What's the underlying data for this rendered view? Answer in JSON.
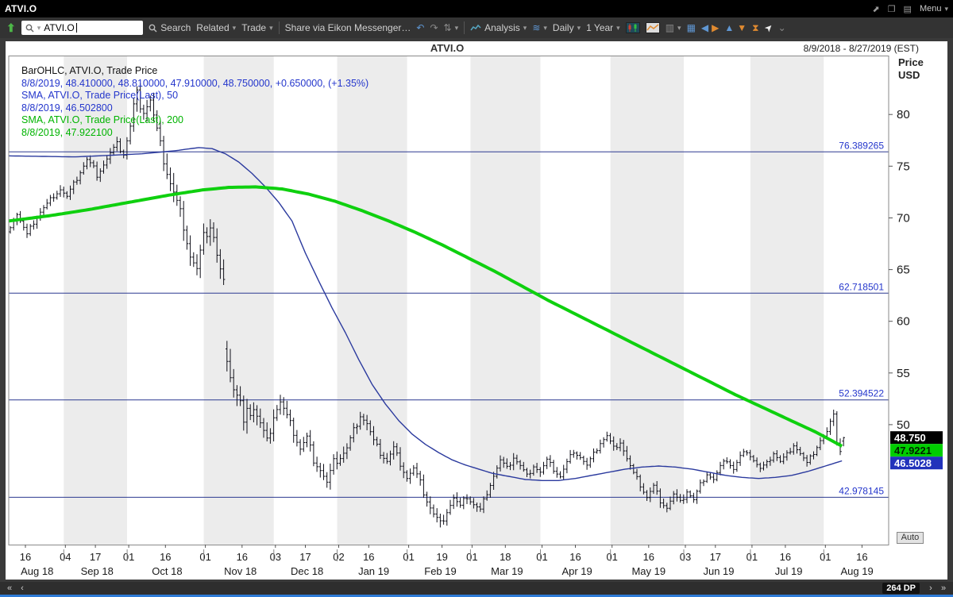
{
  "titlebar": {
    "title": "ATVI.O",
    "menu_label": "Menu"
  },
  "toolbar": {
    "symbol_value": "ATVI.O",
    "search_label": "Search",
    "related_label": "Related",
    "trade_label": "Trade",
    "share_label": "Share via Eikon Messenger…",
    "analysis_label": "Analysis",
    "interval_label": "Daily",
    "range_label": "1 Year"
  },
  "chart_header": {
    "title": "ATVI.O",
    "date_range": "8/9/2018 - 8/27/2019 (EST)",
    "axis_unit_line1": "Price",
    "axis_unit_line2": "USD",
    "auto_label": "Auto"
  },
  "legend": [
    {
      "text": "BarOHLC, ATVI.O, Trade Price",
      "color": "#111111"
    },
    {
      "text": "8/8/2019, 48.410000, 48.810000, 47.910000, 48.750000, +0.650000, (+1.35%)",
      "color": "#2436cc"
    },
    {
      "text": "SMA, ATVI.O, Trade Price(Last), 50",
      "color": "#2436cc"
    },
    {
      "text": "8/8/2019, 46.502800",
      "color": "#2436cc"
    },
    {
      "text": "SMA, ATVI.O, Trade Price(Last), 200",
      "color": "#00b400"
    },
    {
      "text": "8/8/2019, 47.922100",
      "color": "#00b400"
    }
  ],
  "bottombar": {
    "dp_label": "264 DP"
  },
  "chart_data": {
    "type": "ohlc",
    "title": "ATVI.O",
    "date_range": "8/9/2018 - 8/27/2019 (EST)",
    "bar_count": 251,
    "axis_days": 264,
    "ylim": [
      38.4,
      85.7
    ],
    "y_ticks": [
      80,
      75,
      70,
      65,
      60,
      55,
      50
    ],
    "h_lines": [
      {
        "value": 76.389265,
        "label": "76.389265"
      },
      {
        "value": 62.718501,
        "label": "62.718501"
      },
      {
        "value": 52.394522,
        "label": "52.394522"
      },
      {
        "value": 42.978145,
        "label": "42.978145"
      }
    ],
    "x_ticks": [
      [
        5,
        "16"
      ],
      [
        17,
        "04"
      ],
      [
        26,
        "17"
      ],
      [
        36,
        "01"
      ],
      [
        47,
        "16"
      ],
      [
        59,
        "01"
      ],
      [
        70,
        "16"
      ],
      [
        80,
        "03"
      ],
      [
        89,
        "17"
      ],
      [
        99,
        "02"
      ],
      [
        108,
        "16"
      ],
      [
        120,
        "01"
      ],
      [
        130,
        "19"
      ],
      [
        139,
        "01"
      ],
      [
        149,
        "18"
      ],
      [
        160,
        "01"
      ],
      [
        170,
        "16"
      ],
      [
        181,
        "01"
      ],
      [
        192,
        "16"
      ],
      [
        203,
        "03"
      ],
      [
        212,
        "17"
      ],
      [
        223,
        "01"
      ],
      [
        233,
        "16"
      ],
      [
        245,
        "01"
      ],
      [
        256,
        "16"
      ]
    ],
    "months": [
      {
        "start": 0,
        "label": "Aug 18",
        "shaded": false
      },
      {
        "start": 17,
        "label": "Sep 18",
        "shaded": true
      },
      {
        "start": 36,
        "label": "Oct 18",
        "shaded": false
      },
      {
        "start": 59,
        "label": "Nov 18",
        "shaded": true
      },
      {
        "start": 80,
        "label": "Dec 18",
        "shaded": false
      },
      {
        "start": 99,
        "label": "Jan 19",
        "shaded": true
      },
      {
        "start": 120,
        "label": "Feb 19",
        "shaded": false
      },
      {
        "start": 139,
        "label": "Mar 19",
        "shaded": true
      },
      {
        "start": 160,
        "label": "Apr 19",
        "shaded": false
      },
      {
        "start": 181,
        "label": "May 19",
        "shaded": true
      },
      {
        "start": 203,
        "label": "Jun 19",
        "shaded": false
      },
      {
        "start": 223,
        "label": "Jul 19",
        "shaded": true
      },
      {
        "start": 245,
        "label": "Aug 19",
        "shaded": false
      }
    ],
    "series": [
      {
        "name": "BarOHLC Trade Price",
        "last": {
          "date": "8/8/2019",
          "open": 48.41,
          "high": 48.81,
          "low": 47.91,
          "close": 48.75,
          "change": "+0.650000",
          "change_pct": "(+1.35%)"
        }
      },
      {
        "name": "SMA 50",
        "last_value": 46.5028
      },
      {
        "name": "SMA 200",
        "last_value": 47.9221
      }
    ],
    "last_bar": {
      "open": 48.41,
      "high": 48.81,
      "low": 47.91,
      "close": 48.75
    },
    "price_anchors": [
      [
        0,
        69.3
      ],
      [
        2,
        70.4
      ],
      [
        4,
        69.0
      ],
      [
        5,
        68.3
      ],
      [
        7,
        69.6
      ],
      [
        9,
        70.6
      ],
      [
        11,
        71.3
      ],
      [
        13,
        72.2
      ],
      [
        15,
        72.8
      ],
      [
        17,
        72.0
      ],
      [
        19,
        73.2
      ],
      [
        21,
        74.5
      ],
      [
        23,
        75.6
      ],
      [
        25,
        74.8
      ],
      [
        26,
        74.2
      ],
      [
        28,
        75.2
      ],
      [
        30,
        76.2
      ],
      [
        32,
        77.1
      ],
      [
        34,
        76.2
      ],
      [
        36,
        78.8
      ],
      [
        37,
        80.8
      ],
      [
        38,
        82.0
      ],
      [
        39,
        81.0
      ],
      [
        40,
        80.4
      ],
      [
        42,
        81.4
      ],
      [
        43,
        79.8
      ],
      [
        44,
        78.4
      ],
      [
        46,
        75.6
      ],
      [
        48,
        73.4
      ],
      [
        50,
        71.4
      ],
      [
        52,
        69.4
      ],
      [
        54,
        66.4
      ],
      [
        56,
        64.9
      ],
      [
        57,
        66.5
      ],
      [
        58,
        68.0
      ],
      [
        60,
        69.3
      ],
      [
        61,
        68.2
      ],
      [
        62,
        66.3
      ],
      [
        63,
        64.8
      ],
      [
        64,
        63.6
      ],
      [
        65,
        56.8
      ],
      [
        66,
        55.0
      ],
      [
        67,
        53.6
      ],
      [
        69,
        52.1
      ],
      [
        70,
        49.8
      ],
      [
        71,
        50.9
      ],
      [
        73,
        51.7
      ],
      [
        75,
        50.1
      ],
      [
        77,
        48.3
      ],
      [
        79,
        51.0
      ],
      [
        81,
        52.2
      ],
      [
        83,
        50.7
      ],
      [
        85,
        49.3
      ],
      [
        87,
        47.7
      ],
      [
        89,
        48.7
      ],
      [
        91,
        46.7
      ],
      [
        93,
        45.7
      ],
      [
        95,
        44.3
      ],
      [
        97,
        46.3
      ],
      [
        99,
        46.9
      ],
      [
        101,
        47.7
      ],
      [
        103,
        49.4
      ],
      [
        105,
        51.0
      ],
      [
        107,
        50.1
      ],
      [
        109,
        48.3
      ],
      [
        111,
        47.3
      ],
      [
        113,
        46.5
      ],
      [
        115,
        47.7
      ],
      [
        117,
        46.3
      ],
      [
        119,
        44.9
      ],
      [
        121,
        45.7
      ],
      [
        123,
        44.3
      ],
      [
        125,
        42.7
      ],
      [
        127,
        41.3
      ],
      [
        129,
        40.4
      ],
      [
        131,
        41.7
      ],
      [
        133,
        42.9
      ],
      [
        135,
        42.0
      ],
      [
        137,
        43.1
      ],
      [
        139,
        42.3
      ],
      [
        141,
        41.7
      ],
      [
        143,
        43.5
      ],
      [
        145,
        45.1
      ],
      [
        147,
        46.5
      ],
      [
        149,
        45.7
      ],
      [
        151,
        46.9
      ],
      [
        153,
        46.0
      ],
      [
        155,
        45.0
      ],
      [
        157,
        46.1
      ],
      [
        159,
        45.4
      ],
      [
        161,
        46.5
      ],
      [
        163,
        45.7
      ],
      [
        165,
        45.0
      ],
      [
        167,
        46.3
      ],
      [
        169,
        47.5
      ],
      [
        171,
        46.9
      ],
      [
        173,
        46.0
      ],
      [
        175,
        47.1
      ],
      [
        177,
        48.3
      ],
      [
        179,
        48.9
      ],
      [
        181,
        47.7
      ],
      [
        183,
        48.4
      ],
      [
        185,
        46.7
      ],
      [
        187,
        45.2
      ],
      [
        189,
        44.2
      ],
      [
        191,
        43.0
      ],
      [
        193,
        44.0
      ],
      [
        195,
        42.7
      ],
      [
        197,
        42.0
      ],
      [
        199,
        43.2
      ],
      [
        201,
        42.4
      ],
      [
        203,
        43.6
      ],
      [
        205,
        42.7
      ],
      [
        207,
        44.2
      ],
      [
        209,
        45.3
      ],
      [
        211,
        44.7
      ],
      [
        213,
        45.9
      ],
      [
        215,
        46.6
      ],
      [
        217,
        45.7
      ],
      [
        219,
        46.9
      ],
      [
        221,
        47.5
      ],
      [
        223,
        46.6
      ],
      [
        225,
        45.7
      ],
      [
        227,
        46.2
      ],
      [
        229,
        47.3
      ],
      [
        231,
        46.4
      ],
      [
        233,
        47.1
      ],
      [
        235,
        48.1
      ],
      [
        237,
        47.2
      ],
      [
        239,
        46.2
      ],
      [
        241,
        47.3
      ],
      [
        243,
        48.5
      ],
      [
        245,
        49.2
      ],
      [
        246,
        50.1
      ],
      [
        247,
        51.3
      ],
      [
        248,
        48.4
      ],
      [
        249,
        47.5
      ],
      [
        250,
        48.75
      ]
    ],
    "volatility": [
      [
        0,
        0.55
      ],
      [
        17,
        0.6
      ],
      [
        36,
        1.0
      ],
      [
        47,
        1.3
      ],
      [
        59,
        1.2
      ],
      [
        65,
        1.5
      ],
      [
        72,
        1.1
      ],
      [
        80,
        0.9
      ],
      [
        99,
        0.8
      ],
      [
        110,
        0.7
      ],
      [
        120,
        0.8
      ],
      [
        131,
        0.7
      ],
      [
        139,
        0.6
      ],
      [
        160,
        0.55
      ],
      [
        181,
        0.6
      ],
      [
        203,
        0.5
      ],
      [
        223,
        0.5
      ],
      [
        245,
        0.6
      ]
    ],
    "sma50": [
      [
        0,
        76.0
      ],
      [
        20,
        75.9
      ],
      [
        40,
        76.2
      ],
      [
        50,
        76.5
      ],
      [
        57,
        76.8
      ],
      [
        61,
        76.7
      ],
      [
        65,
        76.2
      ],
      [
        69,
        75.4
      ],
      [
        73,
        74.3
      ],
      [
        77,
        73.0
      ],
      [
        81,
        71.5
      ],
      [
        85,
        69.7
      ],
      [
        89,
        66.6
      ],
      [
        93,
        63.9
      ],
      [
        97,
        61.3
      ],
      [
        101,
        58.9
      ],
      [
        105,
        56.3
      ],
      [
        109,
        53.9
      ],
      [
        113,
        52.0
      ],
      [
        117,
        50.4
      ],
      [
        121,
        49.1
      ],
      [
        125,
        48.1
      ],
      [
        129,
        47.3
      ],
      [
        133,
        46.6
      ],
      [
        137,
        46.1
      ],
      [
        141,
        45.7
      ],
      [
        145,
        45.3
      ],
      [
        150,
        45.0
      ],
      [
        155,
        44.7
      ],
      [
        160,
        44.6
      ],
      [
        165,
        44.6
      ],
      [
        170,
        44.8
      ],
      [
        175,
        45.1
      ],
      [
        180,
        45.4
      ],
      [
        185,
        45.7
      ],
      [
        190,
        45.9
      ],
      [
        195,
        46.0
      ],
      [
        200,
        45.9
      ],
      [
        205,
        45.7
      ],
      [
        210,
        45.4
      ],
      [
        215,
        45.1
      ],
      [
        220,
        44.9
      ],
      [
        225,
        44.8
      ],
      [
        230,
        44.9
      ],
      [
        235,
        45.1
      ],
      [
        240,
        45.5
      ],
      [
        245,
        46.0
      ],
      [
        250,
        46.5028
      ]
    ],
    "sma200": [
      [
        0,
        69.7
      ],
      [
        12,
        70.2
      ],
      [
        24,
        70.8
      ],
      [
        36,
        71.5
      ],
      [
        48,
        72.2
      ],
      [
        58,
        72.7
      ],
      [
        66,
        72.95
      ],
      [
        74,
        73.0
      ],
      [
        82,
        72.8
      ],
      [
        90,
        72.3
      ],
      [
        98,
        71.6
      ],
      [
        106,
        70.7
      ],
      [
        114,
        69.7
      ],
      [
        122,
        68.6
      ],
      [
        130,
        67.4
      ],
      [
        138,
        66.1
      ],
      [
        146,
        64.8
      ],
      [
        154,
        63.4
      ],
      [
        162,
        62.0
      ],
      [
        170,
        60.7
      ],
      [
        178,
        59.4
      ],
      [
        186,
        58.1
      ],
      [
        194,
        56.8
      ],
      [
        202,
        55.5
      ],
      [
        210,
        54.2
      ],
      [
        218,
        52.9
      ],
      [
        226,
        51.7
      ],
      [
        234,
        50.5
      ],
      [
        242,
        49.3
      ],
      [
        250,
        47.9221
      ]
    ],
    "price_flags": [
      {
        "price": 48.75,
        "label": "48.750",
        "bg": "#000000",
        "fg": "#ffffff"
      },
      {
        "price": 47.9221,
        "label": "47.9221",
        "bg": "#00ce00",
        "fg": "#002200"
      },
      {
        "price": 46.5028,
        "label": "46.5028",
        "bg": "#2233bb",
        "fg": "#ffffff"
      }
    ],
    "colors": {
      "bar": "#10101a",
      "sma50": "#2b3a9e",
      "sma200": "#0fd00f",
      "hline": "#2b3990",
      "hline_label": "#2436cc",
      "band": "#ececec",
      "axis_text": "#1a1a1a"
    }
  }
}
